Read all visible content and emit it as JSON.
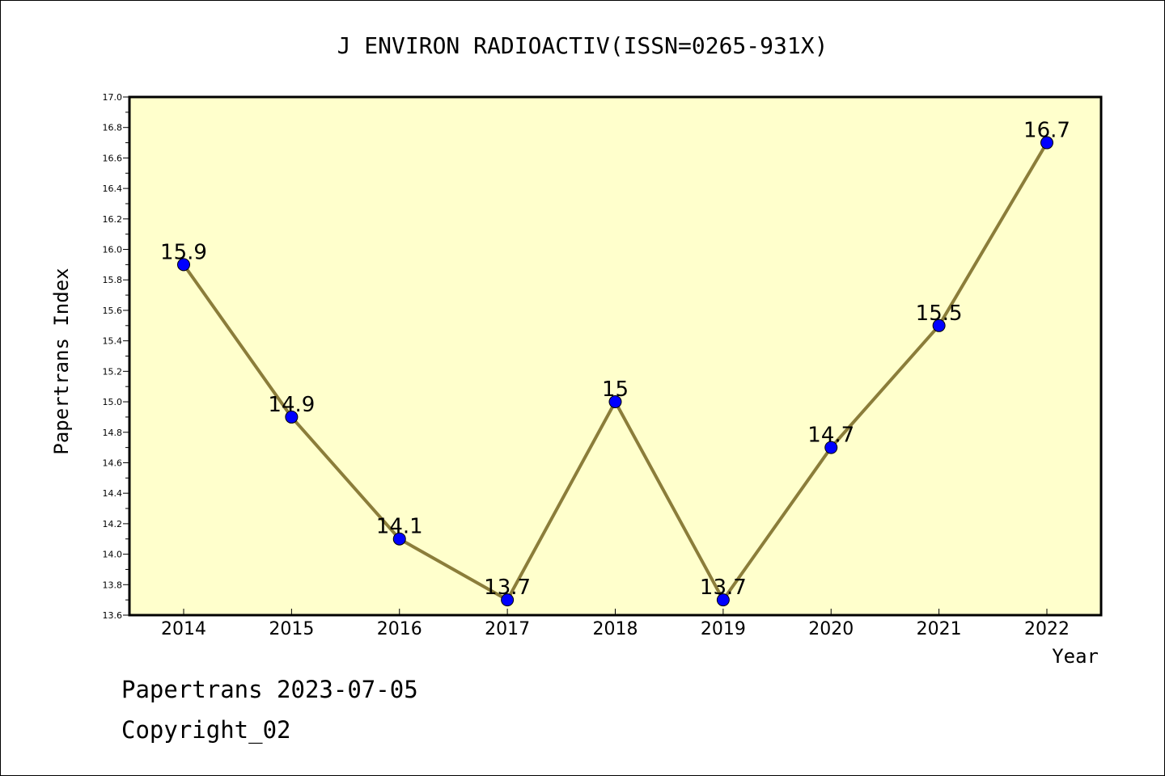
{
  "chart_data": {
    "type": "line",
    "title": "J ENVIRON RADIOACTIV(ISSN=0265-931X)",
    "xlabel": "Year",
    "ylabel": "Papertrans Index",
    "categories": [
      "2014",
      "2015",
      "2016",
      "2017",
      "2018",
      "2019",
      "2020",
      "2021",
      "2022"
    ],
    "values": [
      15.9,
      14.9,
      14.1,
      13.7,
      15.0,
      13.7,
      14.7,
      15.5,
      16.7
    ],
    "data_labels": [
      "15.9",
      "14.9",
      "14.1",
      "13.7",
      "15",
      "13.7",
      "14.7",
      "15.5",
      "16.7"
    ],
    "ylim": [
      13.6,
      17.0
    ],
    "yticks": [
      "13.6",
      "13.8",
      "14.0",
      "14.2",
      "14.4",
      "14.6",
      "14.8",
      "15.0",
      "15.2",
      "15.4",
      "15.6",
      "15.8",
      "16.0",
      "16.2",
      "16.4",
      "16.6",
      "16.8",
      "17.0"
    ],
    "grid": false,
    "legend": "none",
    "colors": {
      "plot_background": "#ffffcc",
      "line": "#8b7d3a",
      "marker": "#0000ff"
    }
  },
  "footer": {
    "line1": "Papertrans 2023-07-05",
    "line2": "Copyright_02"
  }
}
